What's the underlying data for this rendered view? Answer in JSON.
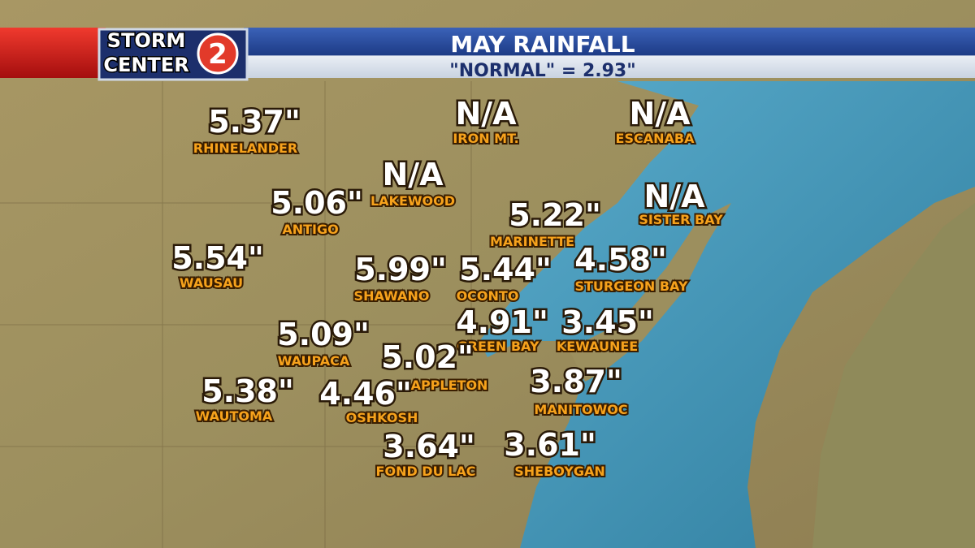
{
  "header": {
    "logo": {
      "line1": "STORM",
      "line2": "CENTER",
      "channel": "2"
    },
    "title": "MAY RAINFALL",
    "subtitle": "\"NORMAL\" = 2.93\""
  },
  "stations": [
    {
      "value": "5.37\"",
      "name": "RHINELANDER"
    },
    {
      "value": "N/A",
      "name": "IRON MT."
    },
    {
      "value": "N/A",
      "name": "ESCANABA"
    },
    {
      "value": "N/A",
      "name": "LAKEWOOD"
    },
    {
      "value": "5.06\"",
      "name": "ANTIGO"
    },
    {
      "value": "5.22\"",
      "name": "MARINETTE"
    },
    {
      "value": "N/A",
      "name": "SISTER BAY"
    },
    {
      "value": "5.54\"",
      "name": "WAUSAU"
    },
    {
      "value": "5.99\"",
      "name": "SHAWANO"
    },
    {
      "value": "5.44\"",
      "name": "OCONTO"
    },
    {
      "value": "4.58\"",
      "name": "STURGEON BAY"
    },
    {
      "value": "4.91\"",
      "name": "GREEN BAY"
    },
    {
      "value": "3.45\"",
      "name": "KEWAUNEE"
    },
    {
      "value": "5.09\"",
      "name": "WAUPACA"
    },
    {
      "value": "5.02\"",
      "name": "APPLETON"
    },
    {
      "value": "3.87\"",
      "name": "MANITOWOC"
    },
    {
      "value": "5.38\"",
      "name": "WAUTOMA"
    },
    {
      "value": "4.46\"",
      "name": "OSHKOSH"
    },
    {
      "value": "3.64\"",
      "name": "FOND DU LAC"
    },
    {
      "value": "3.61\"",
      "name": "SHEBOYGAN"
    }
  ]
}
